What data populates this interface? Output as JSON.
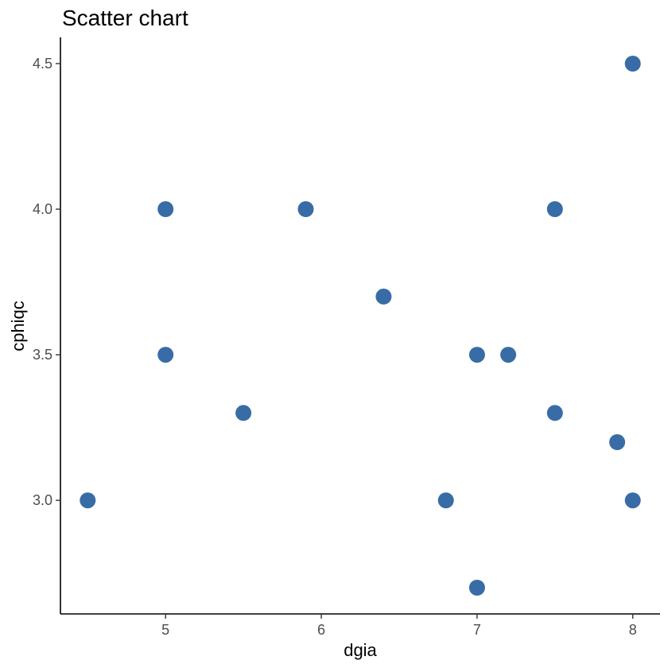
{
  "chart_data": {
    "type": "scatter",
    "title": "Scatter chart",
    "xlabel": "dgia",
    "ylabel": "cphiqc",
    "xlim": [
      4.325,
      8.175
    ],
    "ylim": [
      2.61,
      4.59
    ],
    "x_ticks": [
      5,
      6,
      7,
      8
    ],
    "x_tick_labels": [
      "5",
      "6",
      "7",
      "8"
    ],
    "y_ticks": [
      3.0,
      3.5,
      4.0,
      4.5
    ],
    "y_tick_labels": [
      "3.0",
      "3.5",
      "4.0",
      "4.5"
    ],
    "grid": false,
    "point_color": "#386ca6",
    "points": [
      {
        "x": 4.5,
        "y": 3.0
      },
      {
        "x": 5.0,
        "y": 4.0
      },
      {
        "x": 5.0,
        "y": 3.5
      },
      {
        "x": 5.5,
        "y": 3.3
      },
      {
        "x": 5.9,
        "y": 4.0
      },
      {
        "x": 6.4,
        "y": 3.7
      },
      {
        "x": 6.8,
        "y": 3.0
      },
      {
        "x": 7.0,
        "y": 3.5
      },
      {
        "x": 7.0,
        "y": 2.7
      },
      {
        "x": 7.2,
        "y": 3.5
      },
      {
        "x": 7.5,
        "y": 4.0
      },
      {
        "x": 7.5,
        "y": 3.3
      },
      {
        "x": 7.9,
        "y": 3.2
      },
      {
        "x": 8.0,
        "y": 4.5
      },
      {
        "x": 8.0,
        "y": 3.0
      }
    ]
  }
}
